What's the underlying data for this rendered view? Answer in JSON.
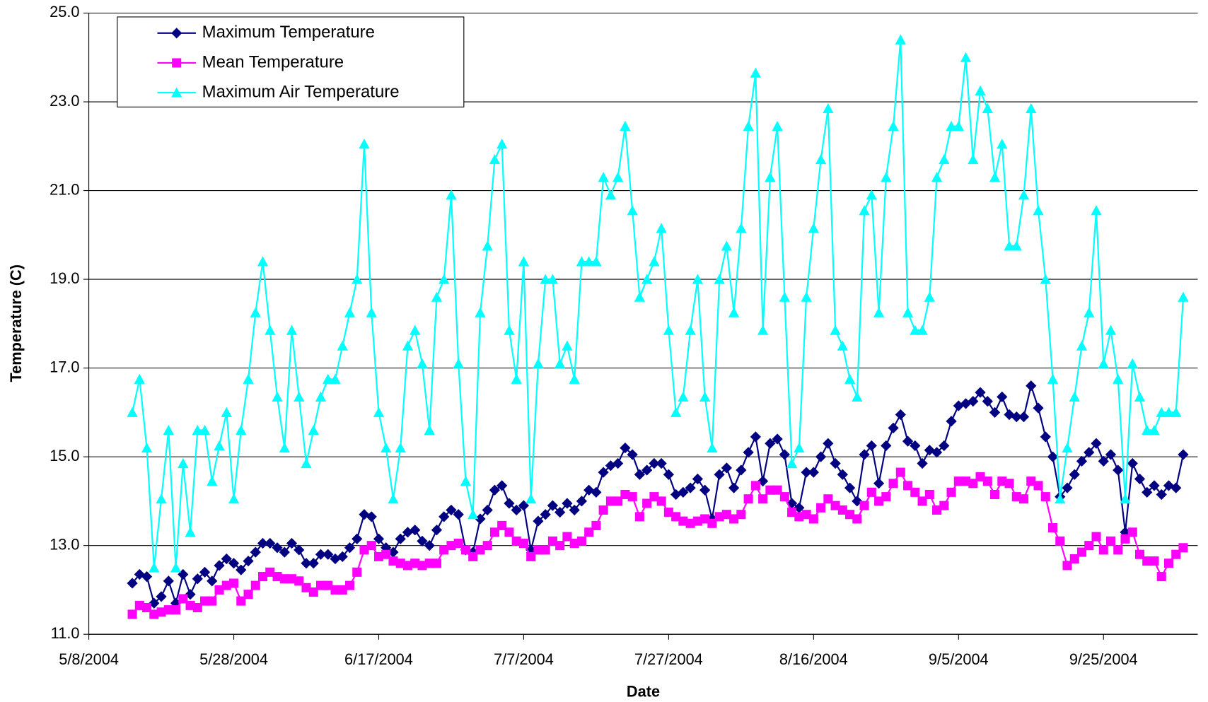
{
  "chart_data": {
    "type": "line",
    "x_label": "Date",
    "y_label": "Temperature (C)",
    "xlim": [
      "5/8/2004",
      "10/8/2004"
    ],
    "xticks": [
      "5/8/2004",
      "5/28/2004",
      "6/17/2004",
      "7/7/2004",
      "7/27/2004",
      "8/16/2004",
      "9/5/2004",
      "9/25/2004"
    ],
    "ylim": [
      11,
      25
    ],
    "yticks": [
      {
        "value": 11,
        "label": "11.0"
      },
      {
        "value": 13,
        "label": "13.0"
      },
      {
        "value": 15,
        "label": "15.0"
      },
      {
        "value": 17,
        "label": "17.0"
      },
      {
        "value": 19,
        "label": "19.0"
      },
      {
        "value": 21,
        "label": "21.0"
      },
      {
        "value": 23,
        "label": "23.0"
      },
      {
        "value": 25,
        "label": "25.0"
      }
    ],
    "grid": true,
    "legend": "top-left",
    "x": [
      "5/14/2004",
      "5/15/2004",
      "5/16/2004",
      "5/17/2004",
      "5/18/2004",
      "5/19/2004",
      "5/20/2004",
      "5/21/2004",
      "5/22/2004",
      "5/23/2004",
      "5/24/2004",
      "5/25/2004",
      "5/26/2004",
      "5/27/2004",
      "5/28/2004",
      "5/29/2004",
      "5/30/2004",
      "5/31/2004",
      "6/1/2004",
      "6/2/2004",
      "6/3/2004",
      "6/4/2004",
      "6/5/2004",
      "6/6/2004",
      "6/7/2004",
      "6/8/2004",
      "6/9/2004",
      "6/10/2004",
      "6/11/2004",
      "6/12/2004",
      "6/13/2004",
      "6/14/2004",
      "6/15/2004",
      "6/16/2004",
      "6/17/2004",
      "6/18/2004",
      "6/19/2004",
      "6/20/2004",
      "6/21/2004",
      "6/22/2004",
      "6/23/2004",
      "6/24/2004",
      "6/25/2004",
      "6/26/2004",
      "6/27/2004",
      "6/28/2004",
      "6/29/2004",
      "6/30/2004",
      "7/1/2004",
      "7/2/2004",
      "7/3/2004",
      "7/4/2004",
      "7/5/2004",
      "7/6/2004",
      "7/7/2004",
      "7/8/2004",
      "7/9/2004",
      "7/10/2004",
      "7/11/2004",
      "7/12/2004",
      "7/13/2004",
      "7/14/2004",
      "7/15/2004",
      "7/16/2004",
      "7/17/2004",
      "7/18/2004",
      "7/19/2004",
      "7/20/2004",
      "7/21/2004",
      "7/22/2004",
      "7/23/2004",
      "7/24/2004",
      "7/25/2004",
      "7/26/2004",
      "7/27/2004",
      "7/28/2004",
      "7/29/2004",
      "7/30/2004",
      "7/31/2004",
      "8/1/2004",
      "8/2/2004",
      "8/3/2004",
      "8/4/2004",
      "8/5/2004",
      "8/6/2004",
      "8/7/2004",
      "8/8/2004",
      "8/9/2004",
      "8/10/2004",
      "8/11/2004",
      "8/12/2004",
      "8/13/2004",
      "8/14/2004",
      "8/15/2004",
      "8/16/2004",
      "8/17/2004",
      "8/18/2004",
      "8/19/2004",
      "8/20/2004",
      "8/21/2004",
      "8/22/2004",
      "8/23/2004",
      "8/24/2004",
      "8/25/2004",
      "8/26/2004",
      "8/27/2004",
      "8/28/2004",
      "8/29/2004",
      "8/30/2004",
      "8/31/2004",
      "9/1/2004",
      "9/2/2004",
      "9/3/2004",
      "9/4/2004",
      "9/5/2004",
      "9/6/2004",
      "9/7/2004",
      "9/8/2004",
      "9/9/2004",
      "9/10/2004",
      "9/11/2004",
      "9/12/2004",
      "9/13/2004",
      "9/14/2004",
      "9/15/2004",
      "9/16/2004",
      "9/17/2004",
      "9/18/2004",
      "9/19/2004",
      "9/20/2004",
      "9/21/2004",
      "9/22/2004",
      "9/23/2004",
      "9/24/2004",
      "9/25/2004",
      "9/26/2004",
      "9/27/2004",
      "9/28/2004",
      "9/29/2004",
      "9/30/2004",
      "10/1/2004",
      "10/2/2004",
      "10/3/2004",
      "10/4/2004",
      "10/5/2004",
      "10/6/2004"
    ],
    "series": [
      {
        "name": "Maximum Temperature",
        "color": "#000080",
        "marker": "diamond",
        "values": [
          12.15,
          12.35,
          12.3,
          11.7,
          11.85,
          12.2,
          11.7,
          12.35,
          11.9,
          12.25,
          12.4,
          12.2,
          12.55,
          12.7,
          12.6,
          12.45,
          12.65,
          12.85,
          13.05,
          13.05,
          12.95,
          12.85,
          13.05,
          12.9,
          12.6,
          12.6,
          12.8,
          12.8,
          12.7,
          12.75,
          12.95,
          13.15,
          13.7,
          13.65,
          13.15,
          12.95,
          12.85,
          13.15,
          13.3,
          13.35,
          13.1,
          13.0,
          13.35,
          13.65,
          13.8,
          13.7,
          12.9,
          12.85,
          13.6,
          13.8,
          14.25,
          14.35,
          13.95,
          13.8,
          13.9,
          12.9,
          13.55,
          13.7,
          13.9,
          13.75,
          13.95,
          13.8,
          14.0,
          14.25,
          14.2,
          14.65,
          14.8,
          14.85,
          15.2,
          15.05,
          14.6,
          14.7,
          14.85,
          14.85,
          14.6,
          14.15,
          14.2,
          14.3,
          14.5,
          14.25,
          13.6,
          14.6,
          14.75,
          14.3,
          14.7,
          15.1,
          15.45,
          14.45,
          15.3,
          15.4,
          15.05,
          13.95,
          13.85,
          14.65,
          14.65,
          15.0,
          15.3,
          14.85,
          14.6,
          14.3,
          14.0,
          15.05,
          15.25,
          14.4,
          15.25,
          15.65,
          15.95,
          15.35,
          15.25,
          14.85,
          15.15,
          15.1,
          15.25,
          15.8,
          16.15,
          16.2,
          16.25,
          16.45,
          16.25,
          16.0,
          16.35,
          15.95,
          15.9,
          15.9,
          16.6,
          16.1,
          15.45,
          15.0,
          14.1,
          14.3,
          14.6,
          14.9,
          15.1,
          15.3,
          14.9,
          15.05,
          14.7,
          13.3,
          14.85,
          14.5,
          14.2,
          14.35,
          14.15,
          14.35,
          14.3,
          15.05
        ]
      },
      {
        "name": "Mean Temperature",
        "color": "#FF00FF",
        "marker": "square",
        "values": [
          11.45,
          11.65,
          11.6,
          11.45,
          11.5,
          11.55,
          11.55,
          11.8,
          11.65,
          11.6,
          11.75,
          11.75,
          12.0,
          12.1,
          12.15,
          11.75,
          11.9,
          12.1,
          12.3,
          12.4,
          12.3,
          12.25,
          12.25,
          12.2,
          12.05,
          11.95,
          12.1,
          12.1,
          12.0,
          12.0,
          12.1,
          12.4,
          12.9,
          13.0,
          12.75,
          12.8,
          12.65,
          12.6,
          12.55,
          12.6,
          12.55,
          12.6,
          12.6,
          12.9,
          13.0,
          13.05,
          12.9,
          12.75,
          12.9,
          13.0,
          13.3,
          13.45,
          13.3,
          13.1,
          13.05,
          12.75,
          12.9,
          12.9,
          13.1,
          13.0,
          13.2,
          13.05,
          13.1,
          13.3,
          13.45,
          13.8,
          14.0,
          14.0,
          14.15,
          14.1,
          13.65,
          13.95,
          14.1,
          14.0,
          13.75,
          13.65,
          13.55,
          13.5,
          13.55,
          13.6,
          13.5,
          13.65,
          13.7,
          13.6,
          13.7,
          14.05,
          14.35,
          14.05,
          14.25,
          14.25,
          14.1,
          13.75,
          13.65,
          13.7,
          13.6,
          13.85,
          14.05,
          13.9,
          13.8,
          13.7,
          13.6,
          13.9,
          14.2,
          14.0,
          14.1,
          14.4,
          14.65,
          14.35,
          14.2,
          14.0,
          14.15,
          13.8,
          13.9,
          14.2,
          14.45,
          14.45,
          14.4,
          14.55,
          14.45,
          14.15,
          14.45,
          14.4,
          14.1,
          14.05,
          14.45,
          14.35,
          14.1,
          13.4,
          13.1,
          12.55,
          12.7,
          12.85,
          13.0,
          13.2,
          12.9,
          13.1,
          12.9,
          13.15,
          13.3,
          12.8,
          12.65,
          12.65,
          12.3,
          12.6,
          12.8,
          12.95
        ]
      },
      {
        "name": "Maximum Air Temperature",
        "color": "#00FFFF",
        "marker": "triangle",
        "values": [
          16.0,
          16.75,
          15.2,
          12.5,
          14.05,
          15.6,
          12.5,
          14.85,
          13.3,
          15.6,
          15.6,
          14.45,
          15.25,
          16.0,
          14.05,
          15.6,
          16.75,
          18.25,
          19.4,
          17.85,
          16.35,
          15.2,
          17.85,
          16.35,
          14.85,
          15.6,
          16.35,
          16.75,
          16.75,
          17.5,
          18.25,
          19.0,
          22.05,
          18.25,
          16.0,
          15.2,
          14.05,
          15.2,
          17.5,
          17.85,
          17.1,
          15.6,
          18.6,
          19.0,
          20.9,
          17.1,
          14.45,
          13.7,
          18.25,
          19.75,
          21.7,
          22.05,
          17.85,
          16.75,
          19.4,
          14.05,
          17.1,
          19.0,
          19.0,
          17.1,
          17.5,
          16.75,
          19.4,
          19.4,
          19.4,
          21.3,
          20.9,
          21.3,
          22.45,
          20.55,
          18.6,
          19.0,
          19.4,
          20.15,
          17.85,
          16.0,
          16.35,
          17.85,
          19.0,
          16.35,
          15.2,
          19.0,
          19.75,
          18.25,
          20.15,
          22.45,
          23.65,
          17.85,
          21.3,
          22.45,
          18.6,
          14.85,
          15.2,
          18.6,
          20.15,
          21.7,
          22.85,
          17.85,
          17.5,
          16.75,
          16.35,
          20.55,
          20.9,
          18.25,
          21.3,
          22.45,
          24.4,
          18.25,
          17.85,
          17.85,
          18.6,
          21.3,
          21.7,
          22.45,
          22.45,
          24.0,
          21.7,
          23.25,
          22.85,
          21.3,
          22.05,
          19.75,
          19.75,
          20.9,
          22.85,
          20.55,
          19.0,
          16.75,
          14.05,
          15.2,
          16.35,
          17.5,
          18.25,
          20.55,
          17.1,
          17.85,
          16.75,
          14.05,
          17.1,
          16.35,
          15.6,
          15.6,
          16.0,
          16.0,
          16.0,
          18.6
        ]
      }
    ]
  }
}
